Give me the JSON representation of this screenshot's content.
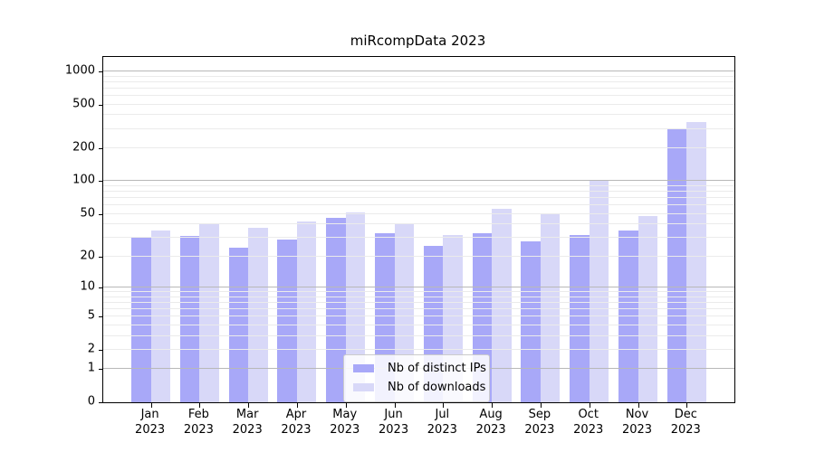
{
  "title": "miRcompData 2023",
  "palette": {
    "bar_distinct_ips": "#a8a8f8",
    "bar_downloads": "#d8d8f8",
    "grid_minor": "#ebebeb",
    "grid_major": "#b8b8b8",
    "axis_line": "#000000",
    "legend_border": "#cccccc",
    "legend_background": "rgba(255,255,255,0.85)"
  },
  "chart_data": {
    "type": "bar",
    "title": "miRcompData 2023",
    "categories": [
      "Jan 2023",
      "Feb 2023",
      "Mar 2023",
      "Apr 2023",
      "May 2023",
      "Jun 2023",
      "Jul 2023",
      "Aug 2023",
      "Sep 2023",
      "Oct 2023",
      "Nov 2023",
      "Dec 2023"
    ],
    "series": [
      {
        "name": "Nb of distinct IPs",
        "color": "#a8a8f8",
        "values": [
          30,
          31,
          24,
          29,
          46,
          33,
          25,
          33,
          28,
          32,
          35,
          305
        ]
      },
      {
        "name": "Nb of downloads",
        "color": "#d8d8f8",
        "values": [
          35,
          40,
          37,
          43,
          52,
          41,
          32,
          56,
          51,
          100,
          48,
          345
        ]
      }
    ],
    "xlabel": "",
    "ylabel": "",
    "yscale": "log1p",
    "yticks": [
      1000,
      500,
      200,
      100,
      50,
      20,
      10,
      5,
      2,
      1,
      0
    ],
    "minor_gridlines": [
      2,
      3,
      4,
      5,
      6,
      7,
      8,
      9,
      20,
      30,
      40,
      50,
      60,
      70,
      80,
      90,
      200,
      300,
      400,
      500,
      600,
      700,
      800,
      900
    ],
    "major_gridlines": [
      1,
      10,
      100,
      1000
    ],
    "ylim": [
      0,
      1350
    ],
    "grid": "horizontal",
    "legend_position": "inside-bottom-center"
  }
}
